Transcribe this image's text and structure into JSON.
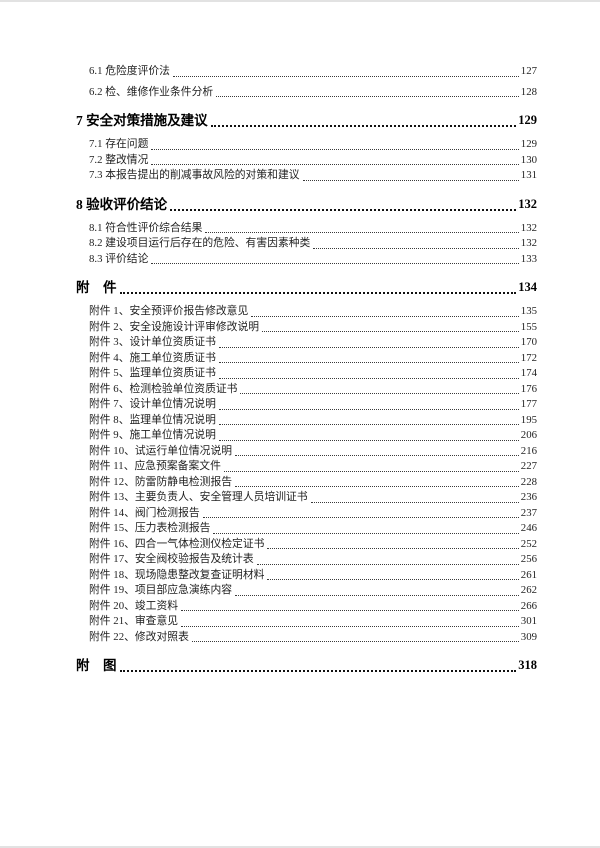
{
  "page": {
    "kind": "table-of-contents",
    "language": "zh-CN"
  },
  "colors": {
    "page_bg": "#ffffff",
    "text": "#1f1f1f",
    "heading_text": "#000000",
    "leader_dots": "#3a3a3a",
    "page_edge": "#e2e2e2"
  },
  "toc": {
    "items": [
      {
        "level": "sub",
        "label": "6.1 危险度评价法",
        "page": "127"
      },
      {
        "level": "sub",
        "label": "6.2 检、维修作业条件分析",
        "page": "128"
      },
      {
        "level": "h1",
        "label": "7 安全对策措施及建议",
        "page": "129"
      },
      {
        "level": "sub",
        "label": "7.1 存在问题",
        "page": "129"
      },
      {
        "level": "sub",
        "label": "7.2 整改情况",
        "page": "130"
      },
      {
        "level": "sub",
        "label": "7.3 本报告提出的削减事故风险的对策和建议",
        "page": "131"
      },
      {
        "level": "h1",
        "label": "8 验收评价结论",
        "page": "132"
      },
      {
        "level": "sub",
        "label": "8.1 符合性评价综合结果",
        "page": "132"
      },
      {
        "level": "sub",
        "label": "8.2 建设项目运行后存在的危险、有害因素种类",
        "page": "132"
      },
      {
        "level": "sub",
        "label": "8.3 评价结论",
        "page": "133"
      },
      {
        "level": "h1",
        "label": "附　件",
        "page": "134"
      },
      {
        "level": "sub",
        "label": "附件 1、安全预评价报告修改意见",
        "page": "135"
      },
      {
        "level": "sub",
        "label": "附件 2、安全设施设计评审修改说明",
        "page": "155"
      },
      {
        "level": "sub",
        "label": "附件 3、设计单位资质证书",
        "page": "170"
      },
      {
        "level": "sub",
        "label": "附件 4、施工单位资质证书",
        "page": "172"
      },
      {
        "level": "sub",
        "label": "附件 5、监理单位资质证书",
        "page": "174"
      },
      {
        "level": "sub",
        "label": "附件 6、检测检验单位资质证书",
        "page": "176"
      },
      {
        "level": "sub",
        "label": "附件 7、设计单位情况说明",
        "page": "177"
      },
      {
        "level": "sub",
        "label": "附件 8、监理单位情况说明",
        "page": "195"
      },
      {
        "level": "sub",
        "label": "附件 9、施工单位情况说明",
        "page": "206"
      },
      {
        "level": "sub",
        "label": "附件 10、试运行单位情况说明",
        "page": "216"
      },
      {
        "level": "sub",
        "label": "附件 11、应急预案备案文件",
        "page": "227"
      },
      {
        "level": "sub",
        "label": "附件 12、防雷防静电检测报告",
        "page": "228"
      },
      {
        "level": "sub",
        "label": "附件 13、主要负责人、安全管理人员培训证书",
        "page": "236"
      },
      {
        "level": "sub",
        "label": "附件 14、阀门检测报告",
        "page": "237"
      },
      {
        "level": "sub",
        "label": "附件 15、压力表检测报告",
        "page": "246"
      },
      {
        "level": "sub",
        "label": "附件 16、四合一气体检测仪检定证书",
        "page": "252"
      },
      {
        "level": "sub",
        "label": "附件 17、安全阀校验报告及统计表",
        "page": "256"
      },
      {
        "level": "sub",
        "label": "附件 18、现场隐患整改复查证明材料",
        "page": "261"
      },
      {
        "level": "sub",
        "label": "附件 19、项目部应急演练内容",
        "page": "262"
      },
      {
        "level": "sub",
        "label": "附件 20、竣工资料",
        "page": "266"
      },
      {
        "level": "sub",
        "label": "附件 21、审查意见",
        "page": "301"
      },
      {
        "level": "sub",
        "label": "附件 22、修改对照表",
        "page": "309"
      },
      {
        "level": "h1",
        "label": "附　图",
        "page": "318"
      }
    ]
  }
}
